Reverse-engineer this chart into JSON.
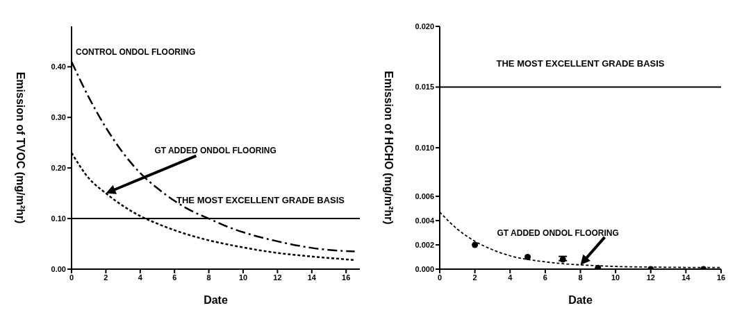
{
  "chart_data": [
    {
      "type": "line",
      "xlabel": "Date",
      "ylabel": "Emission of TVOC (mg/m²hr)",
      "xlim": [
        0,
        16.8
      ],
      "xticks": [
        0,
        2,
        4,
        6,
        8,
        10,
        12,
        14,
        16
      ],
      "ylim": [
        0,
        0.48
      ],
      "yticks": [
        {
          "value": 0,
          "label": "0.00"
        },
        {
          "value": 0.1,
          "label": "0.10"
        },
        {
          "value": 0.2,
          "label": "0.20"
        },
        {
          "value": 0.3,
          "label": "0.30"
        },
        {
          "value": 0.4,
          "label": "0.40"
        }
      ],
      "marker": "none",
      "series": [
        {
          "color": "#000000",
          "line_style": "dashed",
          "x": [
            0,
            1,
            2,
            3,
            4,
            5,
            6,
            7,
            8,
            9,
            10,
            12,
            14,
            15,
            16.5
          ],
          "values": [
            0.41,
            0.34,
            0.28,
            0.23,
            0.19,
            0.16,
            0.135,
            0.115,
            0.1,
            0.085,
            0.073,
            0.055,
            0.042,
            0.038,
            0.035
          ]
        },
        {
          "color": "#000000",
          "line_style": "dotted",
          "x": [
            0,
            1,
            2,
            3,
            4,
            5,
            6,
            7,
            8,
            10,
            12,
            14,
            16.5
          ],
          "values": [
            0.23,
            0.18,
            0.15,
            0.125,
            0.105,
            0.09,
            0.077,
            0.066,
            0.057,
            0.043,
            0.032,
            0.025,
            0.018
          ]
        }
      ],
      "ref_lines": [
        {
          "axis": "y",
          "value": 0.1,
          "label": "THE MOST EXCELLENT GRADE BASIS",
          "color": "#000000"
        }
      ],
      "annotations": [
        {
          "text": "CONTROL ONDOL FLOORING",
          "x": 0,
          "y": 0.41
        },
        "GT ADDED ONDOL FLOORING"
      ]
    },
    {
      "type": "scatter",
      "xlabel": "Date",
      "ylabel": "Emission of HCHO (mg/m²hr)",
      "xlim": [
        0,
        16
      ],
      "xticks": [
        0,
        2,
        4,
        6,
        8,
        10,
        12,
        14,
        16
      ],
      "ylim": [
        0,
        0.02
      ],
      "yticks": [
        {
          "value": 0,
          "label": "0.000"
        },
        {
          "value": 0.002,
          "label": "0.002"
        },
        {
          "value": 0.004,
          "label": "0.004"
        },
        {
          "value": 0.006,
          "label": "0.006"
        },
        {
          "value": 0.01,
          "label": "0.010"
        },
        {
          "value": 0.015,
          "label": "0.015"
        },
        {
          "value": 0.02,
          "label": "0.020"
        }
      ],
      "series": [
        {
          "color": "#000000",
          "marker": "circle",
          "x": [
            2,
            5,
            7,
            9,
            12,
            15
          ],
          "values": [
            0.002,
            0.001,
            0.0008,
            0.0001,
            0,
            0
          ],
          "errors": [
            null,
            null,
            [
              0.0007,
              0.00105
            ],
            null,
            null,
            null
          ]
        },
        {
          "type": "line",
          "color": "#000000",
          "line_style": "dotted",
          "marker": "none",
          "x": [
            0,
            1,
            2,
            3,
            4,
            5,
            6,
            7,
            8,
            9,
            10,
            12,
            14,
            16
          ],
          "values": [
            0.0047,
            0.0033,
            0.0023,
            0.0016,
            0.0011,
            0.0008,
            0.0006,
            0.00045,
            0.00035,
            0.00028,
            0.00022,
            0.00017,
            0.00014,
            0.00013
          ]
        }
      ],
      "ref_lines": [
        {
          "axis": "y",
          "value": 0.015,
          "label": "THE MOST EXCELLENT GRADE BASIS",
          "color": "#000000"
        }
      ],
      "annotations": [
        "GT ADDED ONDOL FLOORING"
      ]
    }
  ]
}
